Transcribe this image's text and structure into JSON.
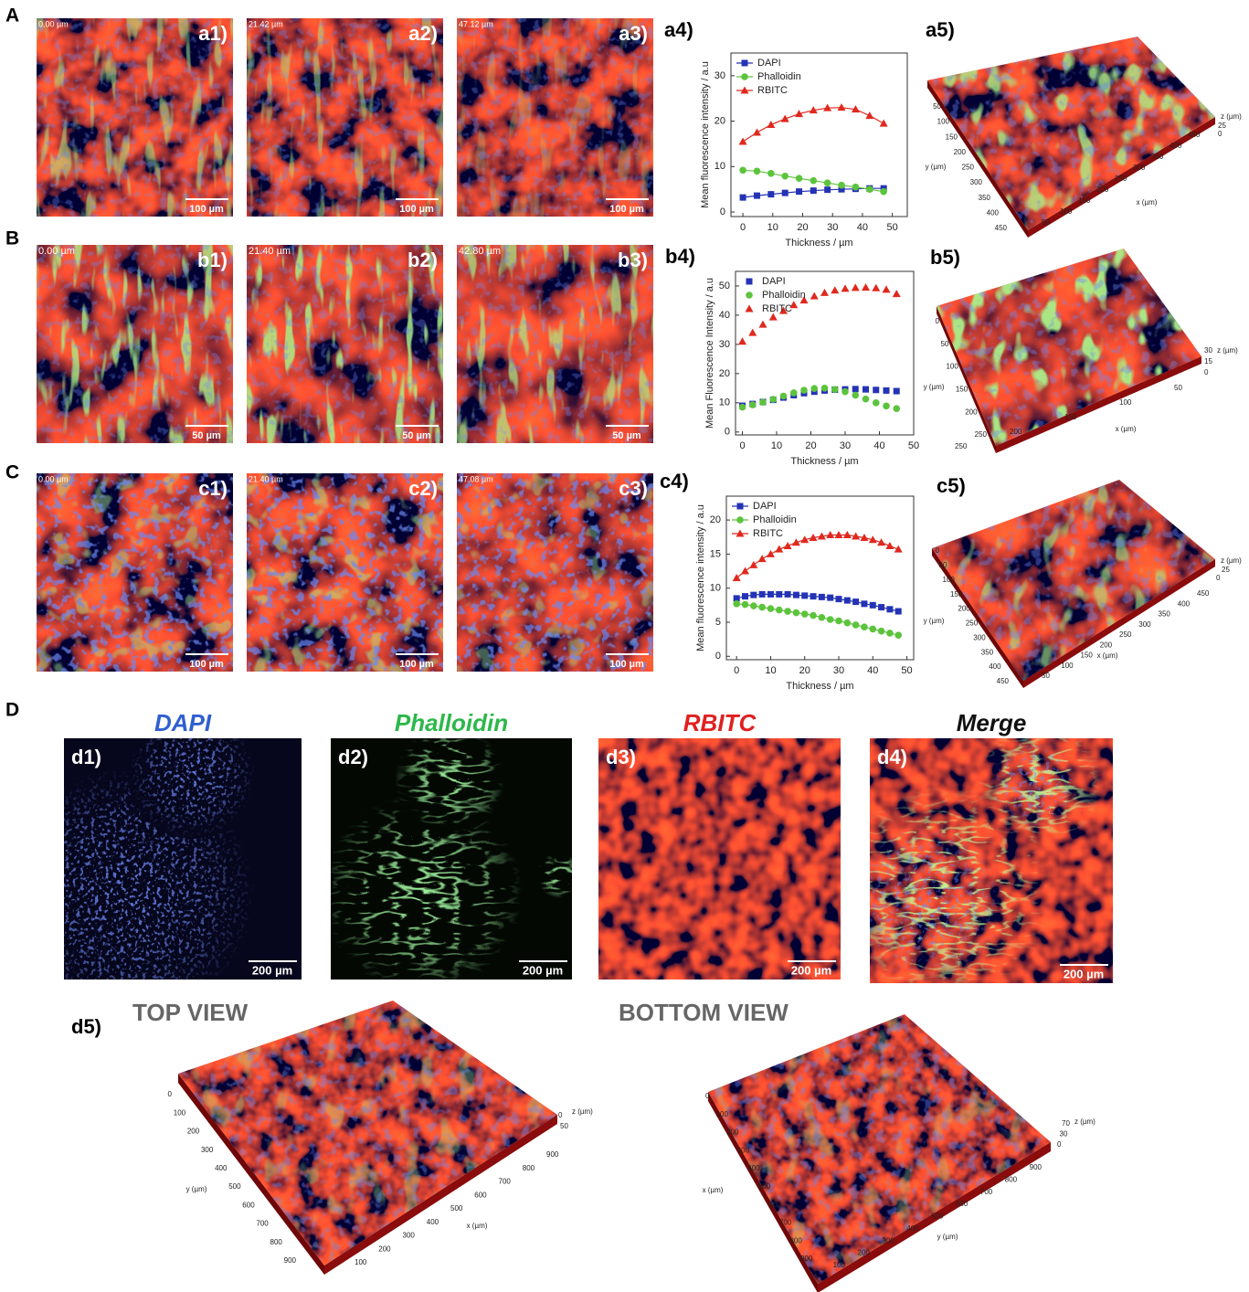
{
  "figure": {
    "sections": [
      "A",
      "B",
      "C",
      "D"
    ],
    "images": [
      {
        "label": "a1)",
        "depth": "0.00 µm",
        "scale": "100 µm"
      },
      {
        "label": "a2)",
        "depth": "21.42 µm",
        "scale": "100 µm"
      },
      {
        "label": "a3)",
        "depth": "47.12 µm",
        "scale": "100 µm"
      },
      {
        "label": "b1)",
        "depth": "0.00 µm",
        "scale": "50 µm"
      },
      {
        "label": "b2)",
        "depth": "21.40 µm",
        "scale": "50 µm"
      },
      {
        "label": "b3)",
        "depth": "42.80 µm",
        "scale": "50 µm"
      },
      {
        "label": "c1)",
        "depth": "0.00 µm",
        "scale": "100 µm"
      },
      {
        "label": "c2)",
        "depth": "21.40 µm",
        "scale": "100 µm"
      },
      {
        "label": "c3)",
        "depth": "47.08 µm",
        "scale": "100 µm"
      }
    ],
    "chart_labels": [
      "a4)",
      "b4)",
      "c4)"
    ],
    "renders": [
      {
        "label": "a5)",
        "x_label": "x (µm)",
        "y_label": "y (µm)",
        "z_label": "z (µm)",
        "x_ticks": [
          50,
          100,
          150,
          200,
          250,
          300,
          350,
          400,
          450
        ],
        "y_ticks": [
          50,
          100,
          150,
          200,
          250,
          300,
          350,
          400,
          450
        ],
        "z_ticks": [
          25,
          0
        ]
      },
      {
        "label": "b5)",
        "x_label": "x (µm)",
        "y_label": "y (µm)",
        "z_label": "z (µm)",
        "x_ticks": [
          250,
          200,
          150,
          100,
          50
        ],
        "y_ticks": [
          0,
          50,
          100,
          150,
          200,
          250
        ],
        "z_ticks": [
          30,
          15,
          0
        ]
      },
      {
        "label": "c5)",
        "x_label": "x (µm)",
        "y_label": "y (µm)",
        "z_label": "z (µm)",
        "x_ticks": [
          50,
          100,
          150,
          200,
          250,
          300,
          350,
          400,
          450
        ],
        "y_ticks": [
          0,
          50,
          100,
          150,
          200,
          250,
          300,
          350,
          400,
          450
        ],
        "z_ticks": [
          25,
          0
        ]
      }
    ],
    "channels": [
      {
        "heading": "DAPI",
        "color": "#2f5fd0",
        "label": "d1)",
        "scale": "200 µm"
      },
      {
        "heading": "Phalloidin",
        "color": "#2db84a",
        "label": "d2)",
        "scale": "200 µm"
      },
      {
        "heading": "RBITC",
        "color": "#e02020",
        "label": "d3)",
        "scale": "200 µm"
      },
      {
        "heading": "Merge",
        "color": "#111111",
        "label": "d4)",
        "scale": "200 µm"
      }
    ],
    "d5": {
      "label": "d5)",
      "views": [
        {
          "title": "TOP VIEW",
          "x_label": "x (µm)",
          "y_label": "y (µm)",
          "z_label": "z (µm)",
          "x_ticks": [
            100,
            200,
            300,
            400,
            500,
            600,
            700,
            800,
            900
          ],
          "y_ticks": [
            0,
            100,
            200,
            300,
            400,
            500,
            600,
            700,
            800,
            900
          ],
          "z_ticks": [
            0,
            50
          ]
        },
        {
          "title": "BOTTOM VIEW",
          "x_label": "x (µm)",
          "y_label": "y (µm)",
          "z_label": "z (µm)",
          "x_ticks": [
            0,
            100,
            200,
            300,
            400,
            500,
            600,
            700,
            800,
            900
          ],
          "y_ticks": [
            100,
            200,
            300,
            400,
            500,
            600,
            700,
            800,
            900
          ],
          "z_ticks": [
            70,
            30,
            0
          ]
        }
      ]
    }
  },
  "chart_data": [
    {
      "type": "line",
      "y_label": "Mean fluorescence intensity / a.u",
      "x_label": "Thickness / µm",
      "x": [
        0,
        4.7,
        9.4,
        14.1,
        18.8,
        23.6,
        28.3,
        33.0,
        37.7,
        42.4,
        47.1
      ],
      "series": [
        {
          "name": "DAPI",
          "color": "#2433b5",
          "marker": "square",
          "values": [
            3.2,
            3.6,
            3.9,
            4.2,
            4.5,
            4.7,
            4.9,
            5.0,
            5.1,
            5.2,
            5.2
          ]
        },
        {
          "name": "Phalloidin",
          "color": "#5cc43c",
          "marker": "circle",
          "values": [
            9.2,
            9.0,
            8.5,
            7.9,
            7.4,
            6.9,
            6.4,
            5.9,
            5.5,
            5.0,
            4.5
          ]
        },
        {
          "name": "RBITC",
          "color": "#e0281e",
          "marker": "triangle",
          "values": [
            15.5,
            17.5,
            19.2,
            20.5,
            21.6,
            22.4,
            22.9,
            23.0,
            22.6,
            21.2,
            19.5
          ]
        }
      ],
      "xlim": [
        -4,
        55
      ],
      "ylim": [
        -1,
        35
      ],
      "xticks": [
        0,
        10,
        20,
        30,
        40,
        50
      ],
      "yticks": [
        0,
        10,
        20,
        30
      ],
      "legend": "upper left"
    },
    {
      "type": "scatter",
      "y_label": "Mean Fluorescence Intensity / a.u",
      "x_label": "Thickness / µm",
      "x": [
        0,
        3,
        6,
        9,
        12,
        15,
        18,
        21,
        24,
        27,
        30,
        33,
        36,
        39,
        42,
        45
      ],
      "series": [
        {
          "name": "DAPI",
          "color": "#2433b5",
          "marker": "square",
          "values": [
            9.0,
            9.6,
            10.3,
            11.0,
            11.8,
            12.6,
            13.3,
            13.8,
            14.2,
            14.5,
            14.6,
            14.7,
            14.6,
            14.4,
            14.2,
            14.0
          ]
        },
        {
          "name": "Phalloidin",
          "color": "#5cc43c",
          "marker": "circle",
          "values": [
            8.5,
            9.3,
            10.2,
            11.2,
            12.3,
            13.4,
            14.3,
            14.9,
            15.0,
            14.6,
            13.8,
            12.6,
            11.3,
            10.0,
            8.9,
            8.0
          ]
        },
        {
          "name": "RBITC",
          "color": "#e0281e",
          "marker": "triangle",
          "values": [
            31.0,
            34.0,
            36.8,
            39.3,
            41.5,
            43.5,
            45.1,
            46.5,
            47.7,
            48.5,
            49.1,
            49.4,
            49.5,
            49.3,
            48.8,
            47.3
          ]
        }
      ],
      "xlim": [
        -2,
        50
      ],
      "ylim": [
        -1,
        55
      ],
      "xticks": [
        0,
        10,
        20,
        30,
        40,
        50
      ],
      "yticks": [
        0,
        10,
        20,
        30,
        40,
        50
      ],
      "legend": "upper left"
    },
    {
      "type": "line",
      "y_label": "Mean fluorescence intensity / a.u",
      "x_label": "Thickness / µm",
      "x": [
        0,
        2.5,
        5,
        7.5,
        10,
        12.5,
        15,
        17.5,
        20,
        22.5,
        25,
        27.5,
        30,
        32.5,
        35,
        37.5,
        40,
        42.5,
        45,
        47.5
      ],
      "series": [
        {
          "name": "DAPI",
          "color": "#2433b5",
          "marker": "square",
          "values": [
            8.5,
            8.8,
            9.0,
            9.1,
            9.1,
            9.1,
            9.1,
            9.0,
            8.9,
            8.8,
            8.7,
            8.6,
            8.4,
            8.2,
            8.0,
            7.7,
            7.5,
            7.2,
            6.9,
            6.6
          ]
        },
        {
          "name": "Phalloidin",
          "color": "#5cc43c",
          "marker": "circle",
          "values": [
            7.7,
            7.6,
            7.4,
            7.2,
            7.0,
            6.8,
            6.6,
            6.4,
            6.2,
            6.0,
            5.7,
            5.4,
            5.2,
            4.9,
            4.6,
            4.3,
            4.0,
            3.7,
            3.4,
            3.1
          ]
        },
        {
          "name": "RBITC",
          "color": "#e0281e",
          "marker": "triangle",
          "values": [
            11.5,
            12.5,
            13.4,
            14.3,
            15.0,
            15.7,
            16.2,
            16.7,
            17.1,
            17.4,
            17.6,
            17.8,
            17.8,
            17.8,
            17.6,
            17.4,
            17.1,
            16.7,
            16.2,
            15.7
          ]
        }
      ],
      "xlim": [
        -3,
        52
      ],
      "ylim": [
        -0.5,
        23.5
      ],
      "xticks": [
        0,
        10,
        20,
        30,
        40,
        50
      ],
      "yticks": [
        0,
        5,
        10,
        15,
        20
      ],
      "legend": "upper left"
    }
  ]
}
